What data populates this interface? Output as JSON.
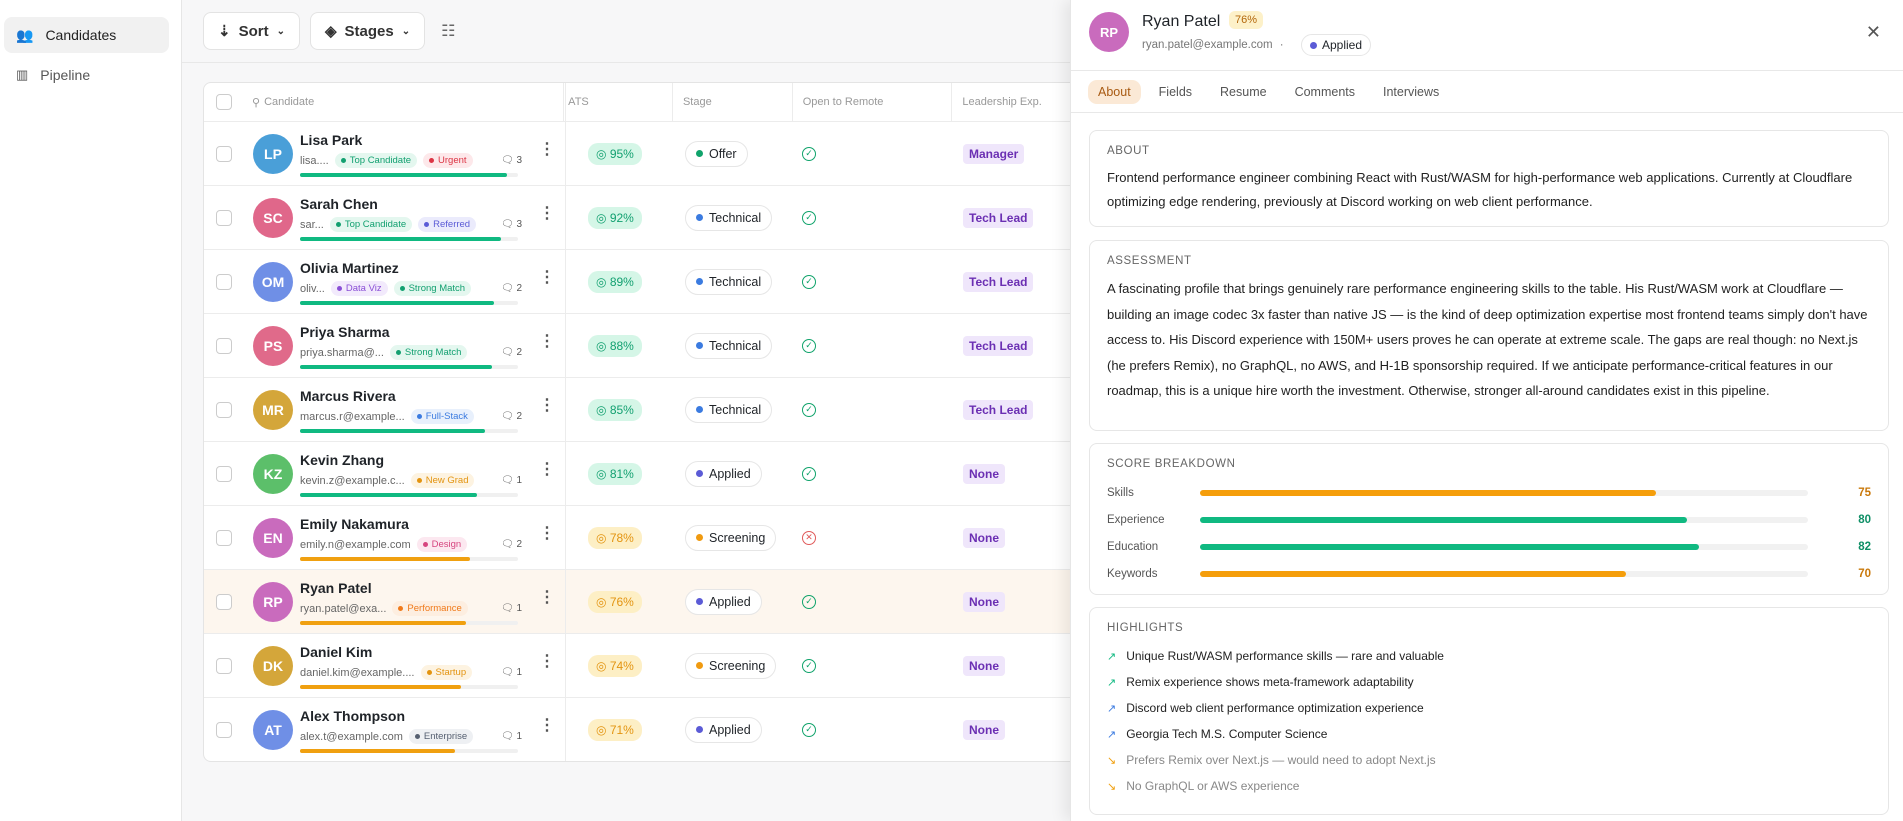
{
  "sidebar": {
    "items": [
      {
        "label": "Candidates",
        "icon": "users-icon",
        "active": true
      },
      {
        "label": "Pipeline",
        "icon": "columns-icon",
        "active": false
      }
    ]
  },
  "toolbar": {
    "sort": "Sort",
    "stages": "Stages"
  },
  "table": {
    "headers": {
      "candidate": "Candidate",
      "ats": "ATS",
      "stage": "Stage",
      "remote": "Open to Remote",
      "leadership": "Leadership Exp."
    },
    "rows": [
      {
        "initials": "LP",
        "name": "Lisa Park",
        "email": "lisa....",
        "color": "#4a9fd8",
        "tags": [
          {
            "label": "Top Candidate",
            "color": "#12a070",
            "bg": "#e4f7ef"
          },
          {
            "label": "Urgent",
            "color": "#dc3545",
            "bg": "#fde8ea"
          }
        ],
        "comments": "3",
        "ats": "95%",
        "ats_value": 95,
        "stage": "Offer",
        "stage_color": "#10a36b",
        "remote": true,
        "leadership": "Manager"
      },
      {
        "initials": "SC",
        "name": "Sarah Chen",
        "email": "sar...",
        "color": "#e0678a",
        "tags": [
          {
            "label": "Top Candidate",
            "color": "#12a070",
            "bg": "#e4f7ef"
          },
          {
            "label": "Referred",
            "color": "#5b5bd6",
            "bg": "#ebebfc"
          }
        ],
        "comments": "3",
        "ats": "92%",
        "ats_value": 92,
        "stage": "Technical",
        "stage_color": "#3b7be0",
        "remote": true,
        "leadership": "Tech Lead"
      },
      {
        "initials": "OM",
        "name": "Olivia Martinez",
        "email": "oliv...",
        "color": "#6f8fe6",
        "tags": [
          {
            "label": "Data Viz",
            "color": "#8a4fd6",
            "bg": "#f2eafc"
          },
          {
            "label": "Strong Match",
            "color": "#12a070",
            "bg": "#e4f7ef"
          }
        ],
        "comments": "2",
        "ats": "89%",
        "ats_value": 89,
        "stage": "Technical",
        "stage_color": "#3b7be0",
        "remote": true,
        "leadership": "Tech Lead"
      },
      {
        "initials": "PS",
        "name": "Priya Sharma",
        "email": "priya.sharma@...",
        "color": "#e06a8a",
        "tags": [
          {
            "label": "Strong Match",
            "color": "#12a070",
            "bg": "#e4f7ef"
          }
        ],
        "comments": "2",
        "ats": "88%",
        "ats_value": 88,
        "stage": "Technical",
        "stage_color": "#3b7be0",
        "remote": true,
        "leadership": "Tech Lead"
      },
      {
        "initials": "MR",
        "name": "Marcus Rivera",
        "email": "marcus.r@example...",
        "color": "#d4a63a",
        "tags": [
          {
            "label": "Full-Stack",
            "color": "#3b7be0",
            "bg": "#e8f0fc"
          }
        ],
        "comments": "2",
        "ats": "85%",
        "ats_value": 85,
        "stage": "Technical",
        "stage_color": "#3b7be0",
        "remote": true,
        "leadership": "Tech Lead"
      },
      {
        "initials": "KZ",
        "name": "Kevin Zhang",
        "email": "kevin.z@example.c...",
        "color": "#5cbf6a",
        "tags": [
          {
            "label": "New Grad",
            "color": "#e39410",
            "bg": "#fdf3e1"
          }
        ],
        "comments": "1",
        "ats": "81%",
        "ats_value": 81,
        "stage": "Applied",
        "stage_color": "#5b5bd6",
        "remote": true,
        "leadership": "None"
      },
      {
        "initials": "EN",
        "name": "Emily Nakamura",
        "email": "emily.n@example.com",
        "color": "#c96bbd",
        "tags": [
          {
            "label": "Design",
            "color": "#d6457f",
            "bg": "#fce8f0"
          }
        ],
        "comments": "2",
        "ats": "78%",
        "ats_value": 78,
        "stage": "Screening",
        "stage_color": "#f09a10",
        "remote": false,
        "leadership": "None"
      },
      {
        "initials": "RP",
        "name": "Ryan Patel",
        "email": "ryan.patel@exa...",
        "color": "#c96bbd",
        "tags": [
          {
            "label": "Performance",
            "color": "#f07a1a",
            "bg": "#fdeee0"
          }
        ],
        "comments": "1",
        "ats": "76%",
        "ats_value": 76,
        "stage": "Applied",
        "stage_color": "#5b5bd6",
        "remote": true,
        "leadership": "None",
        "selected": true
      },
      {
        "initials": "DK",
        "name": "Daniel Kim",
        "email": "daniel.kim@example....",
        "color": "#d4a63a",
        "tags": [
          {
            "label": "Startup",
            "color": "#e39410",
            "bg": "#fdf3e1"
          }
        ],
        "comments": "1",
        "ats": "74%",
        "ats_value": 74,
        "stage": "Screening",
        "stage_color": "#f09a10",
        "remote": true,
        "leadership": "None"
      },
      {
        "initials": "AT",
        "name": "Alex Thompson",
        "email": "alex.t@example.com",
        "color": "#6f8fe6",
        "tags": [
          {
            "label": "Enterprise",
            "color": "#555f70",
            "bg": "#eef0f3"
          }
        ],
        "comments": "1",
        "ats": "71%",
        "ats_value": 71,
        "stage": "Applied",
        "stage_color": "#5b5bd6",
        "remote": true,
        "leadership": "None"
      }
    ]
  },
  "panel": {
    "initials": "RP",
    "name": "Ryan Patel",
    "score": "76%",
    "email": "ryan.patel@example.com",
    "separator": "·",
    "stage": "Applied",
    "tabs": [
      "About",
      "Fields",
      "Resume",
      "Comments",
      "Interviews"
    ],
    "about": {
      "title": "ABOUT",
      "text": "Frontend performance engineer combining React with Rust/WASM for high-performance web applications. Currently at Cloudflare optimizing edge rendering, previously at Discord working on web client performance."
    },
    "assessment": {
      "title": "ASSESSMENT",
      "text": "A fascinating profile that brings genuinely rare performance engineering skills to the table. His Rust/WASM work at Cloudflare — building an image codec 3x faster than native JS — is the kind of deep optimization expertise most frontend teams simply don't have access to. His Discord experience with 150M+ users proves he can operate at extreme scale. The gaps are real though: no Next.js (he prefers Remix), no GraphQL, no AWS, and H-1B sponsorship required. If we anticipate performance-critical features in our roadmap, this is a unique hire worth the investment. Otherwise, stronger all-around candidates exist in this pipeline."
    },
    "scores": {
      "title": "SCORE BREAKDOWN",
      "items": [
        {
          "label": "Skills",
          "value": 75,
          "color": "#f59e0b"
        },
        {
          "label": "Experience",
          "value": 80,
          "color": "#10b981"
        },
        {
          "label": "Education",
          "value": 82,
          "color": "#10b981"
        },
        {
          "label": "Keywords",
          "value": 70,
          "color": "#f59e0b"
        }
      ]
    },
    "highlights": {
      "title": "HIGHLIGHTS",
      "items": [
        {
          "text": "Unique Rust/WASM performance skills — rare and valuable",
          "type": "positive",
          "color": "#10b981"
        },
        {
          "text": "Remix experience shows meta-framework adaptability",
          "type": "positive",
          "color": "#10b981"
        },
        {
          "text": "Discord web client performance optimization experience",
          "type": "positive",
          "color": "#3b7be0"
        },
        {
          "text": "Georgia Tech M.S. Computer Science",
          "type": "positive",
          "color": "#3b7be0"
        },
        {
          "text": "Prefers Remix over Next.js — would need to adopt Next.js",
          "type": "negative",
          "color": "#f0a010"
        },
        {
          "text": "No GraphQL or AWS experience",
          "type": "negative",
          "color": "#f0a010"
        }
      ]
    }
  }
}
